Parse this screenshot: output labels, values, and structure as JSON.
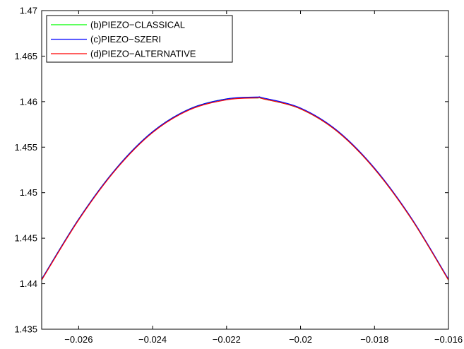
{
  "chart_data": {
    "type": "line",
    "title": "",
    "xlabel": "",
    "ylabel": "",
    "xlim": [
      -0.027,
      -0.016
    ],
    "ylim": [
      1.435,
      1.47
    ],
    "xticks": [
      -0.026,
      -0.024,
      -0.022,
      -0.02,
      -0.018,
      -0.016
    ],
    "xtick_labels": [
      "−0.026",
      "−0.024",
      "−0.022",
      "−0.02",
      "−0.018",
      "−0.016"
    ],
    "yticks": [
      1.435,
      1.44,
      1.445,
      1.45,
      1.455,
      1.46,
      1.465,
      1.47
    ],
    "ytick_labels": [
      "1.435",
      "1.44",
      "1.445",
      "1.45",
      "1.455",
      "1.46",
      "1.465",
      "1.47"
    ],
    "grid": false,
    "legend_position": "top-left",
    "series": [
      {
        "name": "(b)PIEZO−CLASSICAL",
        "color": "#00ff00",
        "x": [
          -0.027,
          -0.026,
          -0.025,
          -0.024,
          -0.023,
          -0.022,
          -0.0212,
          -0.021,
          -0.02,
          -0.019,
          -0.018,
          -0.017,
          -0.016
        ],
        "y": [
          1.4405,
          1.4471,
          1.4526,
          1.4567,
          1.4592,
          1.4603,
          1.4604,
          1.4603,
          1.4592,
          1.4567,
          1.4526,
          1.4471,
          1.4404
        ]
      },
      {
        "name": "(c)PIEZO−SZERI",
        "color": "#0000ff",
        "x": [
          -0.027,
          -0.026,
          -0.025,
          -0.024,
          -0.023,
          -0.022,
          -0.0212,
          -0.021,
          -0.02,
          -0.019,
          -0.018,
          -0.017,
          -0.016
        ],
        "y": [
          1.4405,
          1.4471,
          1.4526,
          1.4567,
          1.4592,
          1.4603,
          1.4605,
          1.4604,
          1.4593,
          1.4568,
          1.4527,
          1.4472,
          1.4405
        ]
      },
      {
        "name": "(d)PIEZO−ALTERNATIVE",
        "color": "#ff0000",
        "x": [
          -0.027,
          -0.026,
          -0.025,
          -0.024,
          -0.023,
          -0.022,
          -0.0212,
          -0.021,
          -0.02,
          -0.019,
          -0.018,
          -0.017,
          -0.016
        ],
        "y": [
          1.4404,
          1.447,
          1.4525,
          1.4566,
          1.4591,
          1.4602,
          1.4604,
          1.4603,
          1.4592,
          1.4567,
          1.4526,
          1.4471,
          1.4404
        ]
      }
    ]
  }
}
